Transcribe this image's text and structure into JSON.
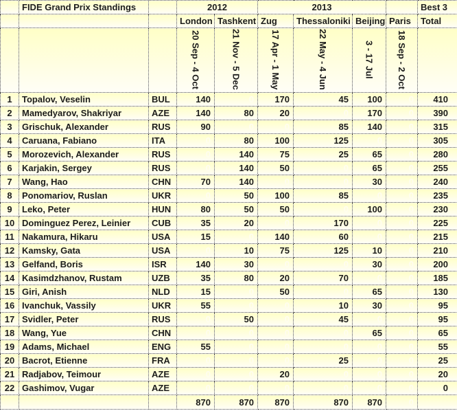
{
  "table": {
    "title": "FIDE Grand Prix Standings",
    "year_groups": [
      {
        "label": "2012",
        "span": 2
      },
      {
        "label": "2013",
        "span": 3
      }
    ],
    "best3_label": "Best 3",
    "cities": [
      "London",
      "Tashkent",
      "Zug",
      "Thessaloniki",
      "Beijing",
      "Paris"
    ],
    "total_label": "Total",
    "dates": [
      "20 Sep - 4 Oct",
      "21 Nov - 5 Dec",
      "17 Apr - 1 May",
      "22 May - 4 Jun",
      "3 - 17 Jul",
      "18 Sep - 2 Oct"
    ],
    "rows": [
      {
        "rank": 1,
        "name": "Topalov, Veselin",
        "country": "BUL",
        "scores": [
          140,
          0,
          170,
          45,
          100,
          0
        ],
        "total": 410
      },
      {
        "rank": 2,
        "name": "Mamedyarov, Shakriyar",
        "country": "AZE",
        "scores": [
          140,
          80,
          20,
          0,
          170,
          0
        ],
        "total": 390
      },
      {
        "rank": 3,
        "name": "Grischuk, Alexander",
        "country": "RUS",
        "scores": [
          90,
          0,
          0,
          85,
          140,
          0
        ],
        "total": 315
      },
      {
        "rank": 4,
        "name": "Caruana, Fabiano",
        "country": "ITA",
        "scores": [
          0,
          80,
          100,
          125,
          0,
          0
        ],
        "total": 305
      },
      {
        "rank": 5,
        "name": "Morozevich, Alexander",
        "country": "RUS",
        "scores": [
          0,
          140,
          75,
          25,
          65,
          0
        ],
        "total": 280
      },
      {
        "rank": 6,
        "name": "Karjakin, Sergey",
        "country": "RUS",
        "scores": [
          0,
          140,
          50,
          0,
          65,
          0
        ],
        "total": 255
      },
      {
        "rank": 7,
        "name": "Wang, Hao",
        "country": "CHN",
        "scores": [
          70,
          140,
          0,
          0,
          30,
          0
        ],
        "total": 240
      },
      {
        "rank": 8,
        "name": "Ponomariov, Ruslan",
        "country": "UKR",
        "scores": [
          0,
          50,
          100,
          85,
          0,
          0
        ],
        "total": 235
      },
      {
        "rank": 9,
        "name": "Leko, Peter",
        "country": "HUN",
        "scores": [
          80,
          50,
          50,
          0,
          100,
          0
        ],
        "total": 230
      },
      {
        "rank": 10,
        "name": "Dominguez Perez, Leinier",
        "country": "CUB",
        "scores": [
          35,
          20,
          0,
          170,
          0,
          0
        ],
        "total": 225
      },
      {
        "rank": 11,
        "name": "Nakamura, Hikaru",
        "country": "USA",
        "scores": [
          15,
          0,
          140,
          60,
          0,
          0
        ],
        "total": 215
      },
      {
        "rank": 12,
        "name": "Kamsky, Gata",
        "country": "USA",
        "scores": [
          0,
          10,
          75,
          125,
          10,
          0
        ],
        "total": 210
      },
      {
        "rank": 13,
        "name": "Gelfand, Boris",
        "country": "ISR",
        "scores": [
          140,
          30,
          0,
          0,
          30,
          0
        ],
        "total": 200
      },
      {
        "rank": 14,
        "name": "Kasimdzhanov, Rustam",
        "country": "UZB",
        "scores": [
          35,
          80,
          20,
          70,
          0,
          0
        ],
        "total": 185
      },
      {
        "rank": 15,
        "name": "Giri, Anish",
        "country": "NLD",
        "scores": [
          15,
          0,
          50,
          0,
          65,
          0
        ],
        "total": 130
      },
      {
        "rank": 16,
        "name": "Ivanchuk, Vassily",
        "country": "UKR",
        "scores": [
          55,
          0,
          0,
          10,
          30,
          0
        ],
        "total": 95
      },
      {
        "rank": 17,
        "name": "Svidler, Peter",
        "country": "RUS",
        "scores": [
          0,
          50,
          0,
          45,
          0,
          0
        ],
        "total": 95
      },
      {
        "rank": 18,
        "name": "Wang, Yue",
        "country": "CHN",
        "scores": [
          0,
          0,
          0,
          0,
          65,
          0
        ],
        "total": 65
      },
      {
        "rank": 19,
        "name": "Adams, Michael",
        "country": "ENG",
        "scores": [
          55,
          0,
          0,
          0,
          0,
          0
        ],
        "total": 55
      },
      {
        "rank": 20,
        "name": "Bacrot, Etienne",
        "country": "FRA",
        "scores": [
          0,
          0,
          0,
          25,
          0,
          0
        ],
        "total": 25
      },
      {
        "rank": 21,
        "name": "Radjabov, Teimour",
        "country": "AZE",
        "scores": [
          0,
          0,
          20,
          0,
          0,
          0
        ],
        "total": 20
      },
      {
        "rank": 22,
        "name": "Gashimov, Vugar",
        "country": "AZE",
        "scores": [
          0,
          0,
          0,
          0,
          0,
          0
        ],
        "total": 0
      }
    ],
    "footer": {
      "scores": [
        870,
        870,
        870,
        870,
        870,
        0
      ],
      "total": ""
    }
  },
  "colors": {
    "cell_gradient_top": "#ffffc7",
    "cell_gradient_bottom": "#fffef7",
    "border": "#4a4a4a",
    "text": "#1c1c1c",
    "faint_zero": "#fffdf0"
  }
}
